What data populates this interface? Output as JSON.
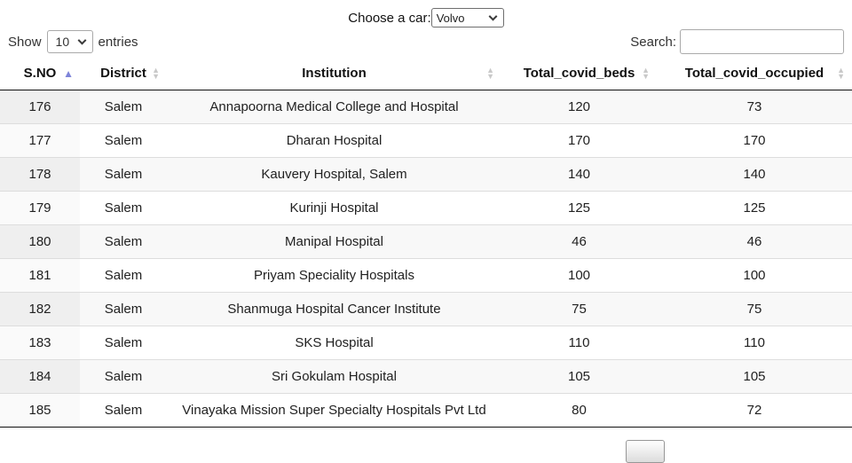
{
  "controls": {
    "car_label": "Choose a car:",
    "car_selected": "Volvo",
    "show_prefix": "Show",
    "length_selected": "10",
    "show_suffix": "entries",
    "search_label": "Search:",
    "search_value": "",
    "search_placeholder": ""
  },
  "table": {
    "columns": [
      {
        "key": "sno",
        "label": "S.NO",
        "sort": "asc"
      },
      {
        "key": "district",
        "label": "District",
        "sort": "none"
      },
      {
        "key": "institution",
        "label": "Institution",
        "sort": "none"
      },
      {
        "key": "beds",
        "label": "Total_covid_beds",
        "sort": "none"
      },
      {
        "key": "occupied",
        "label": "Total_covid_occupied",
        "sort": "none"
      }
    ],
    "rows": [
      [
        "176",
        "Salem",
        "Annapoorna Medical College and Hospital",
        "120",
        "73"
      ],
      [
        "177",
        "Salem",
        "Dharan Hospital",
        "170",
        "170"
      ],
      [
        "178",
        "Salem",
        "Kauvery Hospital, Salem",
        "140",
        "140"
      ],
      [
        "179",
        "Salem",
        "Kurinji Hospital",
        "125",
        "125"
      ],
      [
        "180",
        "Salem",
        "Manipal Hospital",
        "46",
        "46"
      ],
      [
        "181",
        "Salem",
        "Priyam Speciality Hospitals",
        "100",
        "100"
      ],
      [
        "182",
        "Salem",
        "Shanmuga Hospital Cancer Institute",
        "75",
        "75"
      ],
      [
        "183",
        "Salem",
        "SKS Hospital",
        "110",
        "110"
      ],
      [
        "184",
        "Salem",
        "Sri Gokulam Hospital",
        "105",
        "105"
      ],
      [
        "185",
        "Salem",
        "Vinayaka Mission Super Specialty Hospitals Pvt Ltd",
        "80",
        "72"
      ]
    ]
  },
  "icons": {
    "sort_ascending": "up-triangle",
    "sort_unsorted": "up-down-triangles",
    "select_chevron": "chevron-down"
  },
  "colors": {
    "sort_active_arrow": "#7e84d9",
    "sort_inactive_arrow": "#c9c9c9",
    "header_border": "#111111",
    "row_divider": "#dddddd",
    "stripe_odd": "#f8f8f8",
    "stripe_odd_sorted_col": "#efefef",
    "stripe_even_sorted_col": "#fafafa",
    "text": "#212121"
  }
}
